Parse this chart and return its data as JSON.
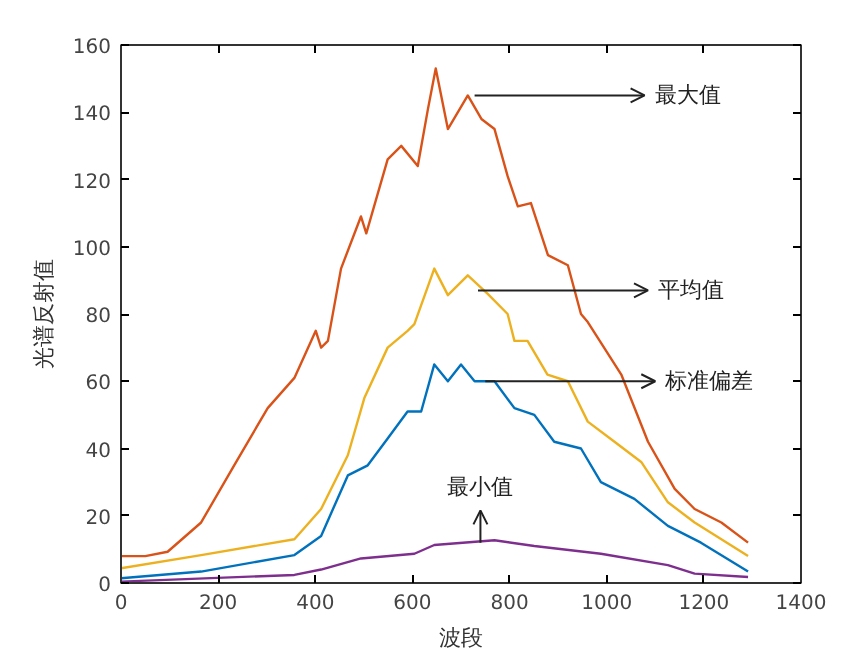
{
  "chart_data": {
    "type": "line",
    "xlabel": "波段",
    "ylabel": "光谱反射值",
    "xlim": [
      0,
      1400
    ],
    "ylim": [
      0,
      160
    ],
    "xticks": [
      0,
      200,
      400,
      600,
      800,
      1000,
      1200,
      1400
    ],
    "yticks": [
      0,
      20,
      40,
      60,
      80,
      100,
      120,
      140,
      160
    ],
    "line_style": "solid",
    "series": [
      {
        "color": "#d95319",
        "x": [
          0,
          50,
          96,
          165,
          233,
          302,
          357,
          401,
          412,
          426,
          453,
          494,
          505,
          549,
          577,
          611,
          632,
          648,
          673,
          714,
          742,
          769,
          796,
          817,
          844,
          879,
          920,
          947,
          961,
          1030,
          1085,
          1140,
          1181,
          1236,
          1291
        ],
        "values": [
          8,
          8,
          9.3,
          18,
          35,
          52,
          61,
          75,
          70,
          72,
          93.5,
          109,
          104,
          126,
          130,
          124,
          141,
          153,
          135,
          145,
          138,
          135,
          121,
          112,
          113,
          97.5,
          94.5,
          80,
          77.6,
          62,
          42,
          28,
          22,
          18,
          12
        ]
      },
      {
        "color": "#edb120",
        "x": [
          0,
          165,
          357,
          412,
          467,
          501,
          549,
          590,
          604,
          645,
          673,
          714,
          755,
          796,
          810,
          837,
          878,
          920,
          961,
          1016,
          1071,
          1126,
          1181,
          1291
        ],
        "values": [
          4.4,
          8.3,
          13,
          22,
          38,
          55,
          70,
          75,
          77,
          93.5,
          85.6,
          91.5,
          86,
          80,
          72,
          72,
          62,
          60,
          48,
          42,
          36,
          24,
          18,
          8
        ]
      },
      {
        "color": "#0072bd",
        "x": [
          0,
          165,
          357,
          412,
          467,
          508,
          549,
          590,
          618,
          645,
          673,
          700,
          728,
          769,
          810,
          851,
          892,
          947,
          988,
          1057,
          1126,
          1194,
          1291
        ],
        "values": [
          1.4,
          3.4,
          8.3,
          14,
          32,
          35,
          43,
          51,
          51,
          65,
          60,
          65,
          60,
          60,
          52,
          50,
          42,
          40,
          30,
          25,
          17,
          12,
          3.4
        ]
      },
      {
        "color": "#7e2f8e",
        "x": [
          0,
          357,
          412,
          494,
          604,
          645,
          769,
          851,
          988,
          1126,
          1181,
          1291
        ],
        "values": [
          0.4,
          2.4,
          4,
          7.3,
          8.7,
          11.3,
          12.7,
          11,
          8.7,
          5.3,
          2.8,
          1.8
        ]
      }
    ],
    "annotations": [
      {
        "text": "最大值",
        "x": 728,
        "y": 145
      },
      {
        "text": "平均值",
        "x": 735,
        "y": 87
      },
      {
        "text": "标准偏差",
        "x": 750,
        "y": 60
      },
      {
        "text": "最小值",
        "x": 740,
        "y": 12
      }
    ]
  }
}
